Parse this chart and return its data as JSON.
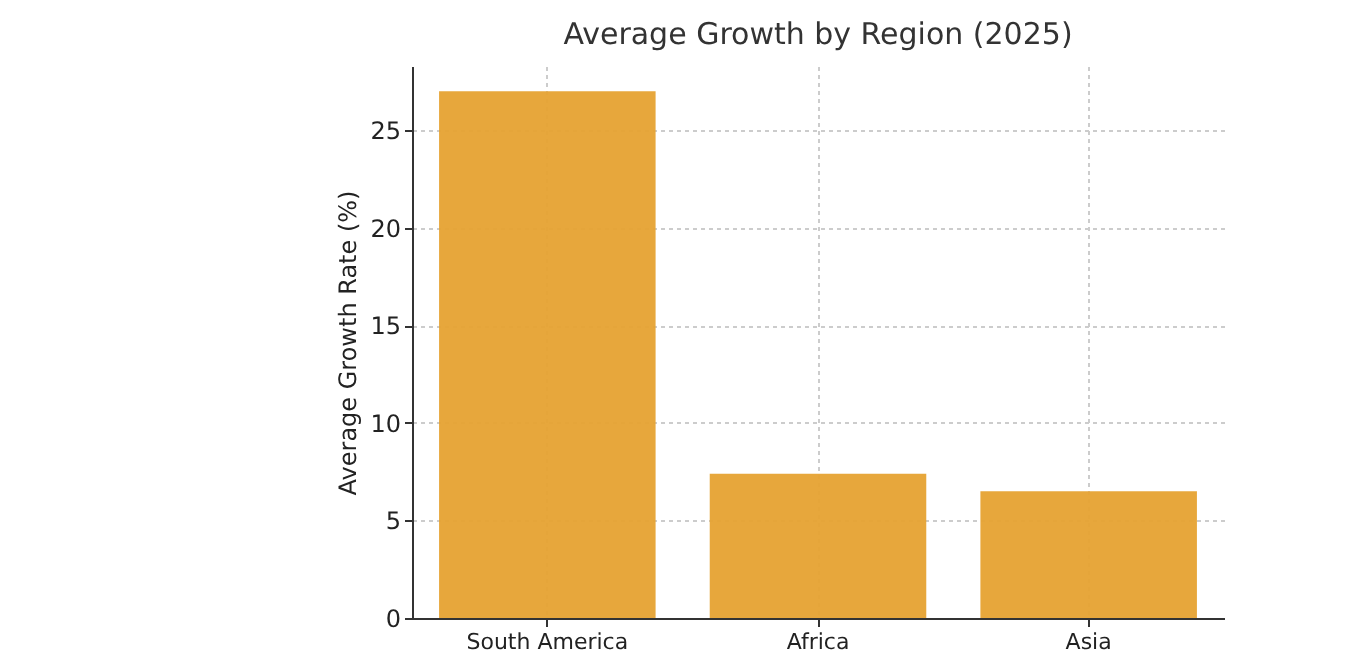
{
  "chart_data": {
    "type": "bar",
    "title": "Average Growth by Region (2025)",
    "ylabel": "Average Growth Rate (%)",
    "categories": [
      "South America",
      "Africa",
      "Asia"
    ],
    "values": [
      27,
      7.4,
      6.5
    ],
    "color": "#e6a232",
    "ylim": [
      0,
      28.3
    ],
    "yticks": [
      0,
      5,
      10,
      15,
      20,
      25
    ],
    "grid": true
  }
}
